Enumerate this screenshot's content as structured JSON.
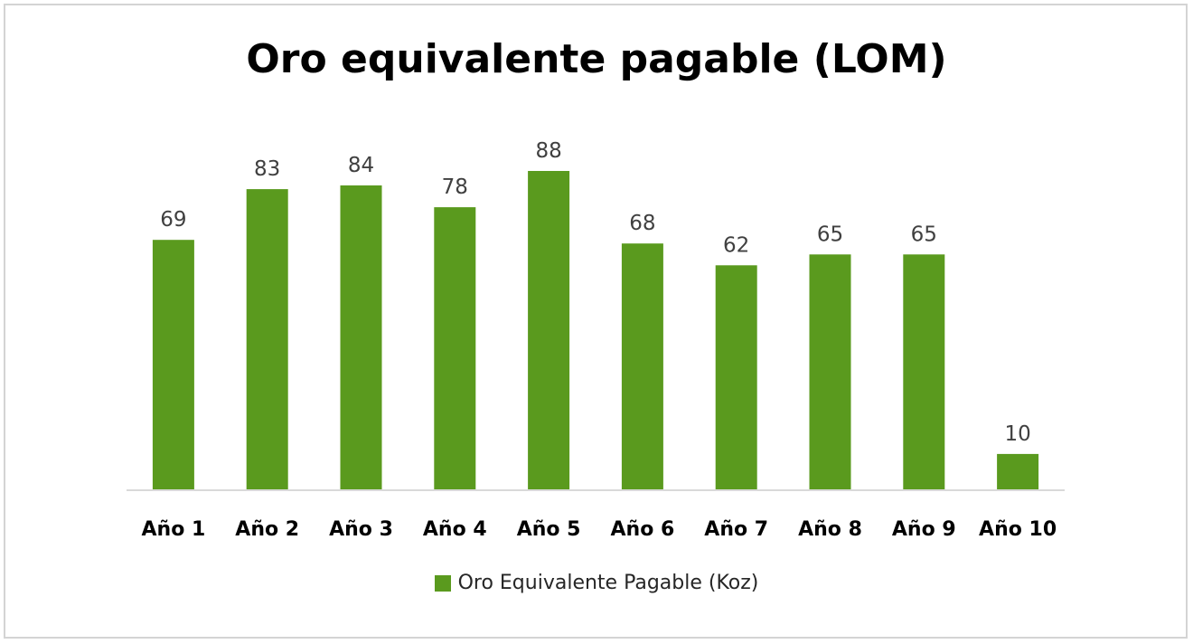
{
  "chart_data": {
    "type": "bar",
    "title": "Oro equivalente pagable (LOM)",
    "categories": [
      "Año 1",
      "Año 2",
      "Año 3",
      "Año 4",
      "Año 5",
      "Año 6",
      "Año 7",
      "Año 8",
      "Año 9",
      "Año 10"
    ],
    "series": [
      {
        "name": "Oro Equivalente Pagable (Koz)",
        "values": [
          69,
          83,
          84,
          78,
          88,
          68,
          62,
          65,
          65,
          10
        ],
        "color": "#5a9a1e"
      }
    ],
    "data_labels": [
      "69",
      "83",
      "84",
      "78",
      "88",
      "68",
      "62",
      "65",
      "65",
      "10"
    ],
    "xlabel": "",
    "ylabel": "",
    "ylim": [
      0,
      88
    ],
    "grid": false,
    "legend_position": "bottom"
  }
}
